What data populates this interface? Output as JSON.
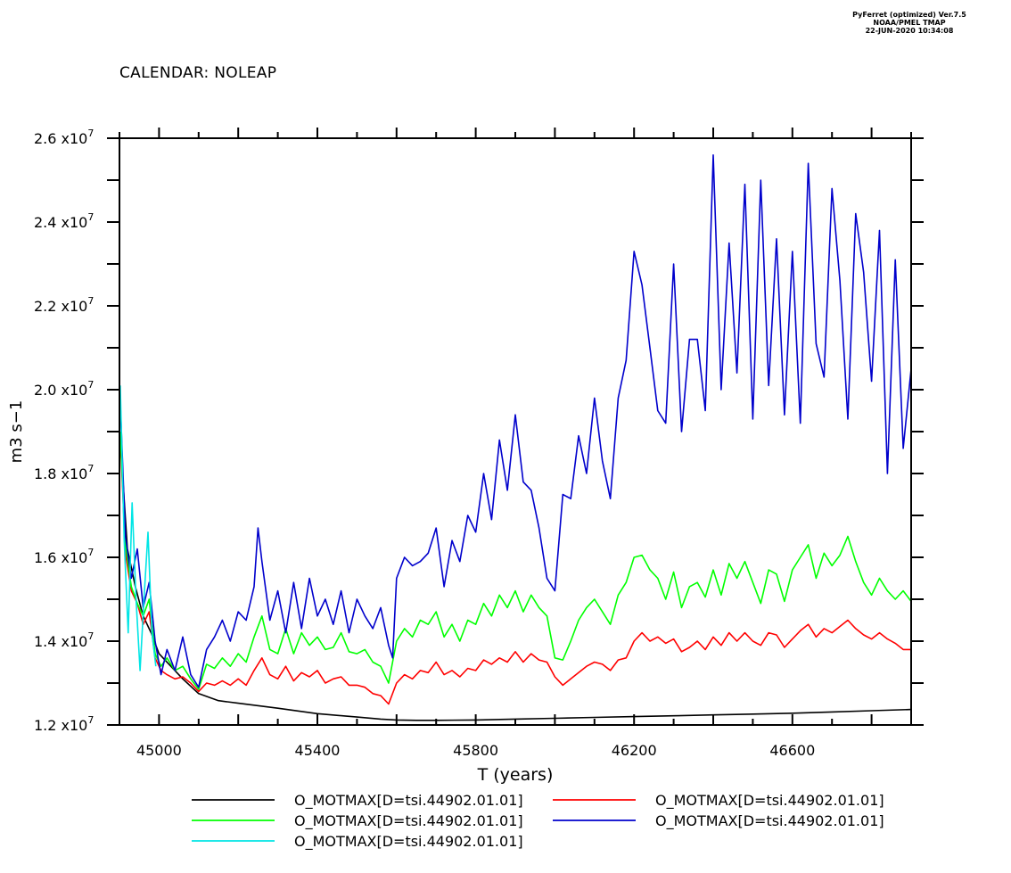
{
  "header": {
    "line1": "PyFerret (optimized) Ver.7.5",
    "line2": "NOAA/PMEL TMAP",
    "line3": "22-JUN-2020 10:34:08"
  },
  "calendar_label": "CALENDAR: NOLEAP",
  "chart_data": {
    "type": "line",
    "title": "",
    "xlabel": "T (years)",
    "ylabel": "m3 s−1",
    "xlim": [
      44900,
      46900
    ],
    "ylim": [
      12000000,
      26000000
    ],
    "x_ticks": [
      45000,
      45400,
      45800,
      46200,
      46600
    ],
    "y_tick_labels": [
      {
        "value": 12000000,
        "mant": "1.2",
        "exp": "7"
      },
      {
        "value": 14000000,
        "mant": "1.4",
        "exp": "7"
      },
      {
        "value": 16000000,
        "mant": "1.6",
        "exp": "7"
      },
      {
        "value": 18000000,
        "mant": "1.8",
        "exp": "7"
      },
      {
        "value": 20000000,
        "mant": "2.0",
        "exp": "7"
      },
      {
        "value": 22000000,
        "mant": "2.2",
        "exp": "7"
      },
      {
        "value": 24000000,
        "mant": "2.4",
        "exp": "7"
      },
      {
        "value": 26000000,
        "mant": "2.6",
        "exp": "7"
      }
    ],
    "grid": false,
    "legend_position": "bottom",
    "series": [
      {
        "name": "O_MOTMAX[D=tsi.44902.01.01]",
        "color": "#000000",
        "x": [
          44902,
          44920,
          44940,
          44960,
          44980,
          45000,
          45030,
          45060,
          45100,
          45150,
          45200,
          45300,
          45400,
          45500,
          45560,
          45600,
          45650,
          45700,
          45800,
          45900,
          46000,
          46100,
          46200,
          46300,
          46400,
          46500,
          46600,
          46700,
          46800,
          46900
        ],
        "y": [
          18800000,
          16200000,
          15300000,
          14600000,
          14200000,
          13700000,
          13400000,
          13100000,
          12750000,
          12580000,
          12520000,
          12400000,
          12270000,
          12190000,
          12140000,
          12120000,
          12110000,
          12110000,
          12120000,
          12140000,
          12160000,
          12180000,
          12200000,
          12220000,
          12240000,
          12260000,
          12280000,
          12310000,
          12340000,
          12370000
        ]
      },
      {
        "name": "O_MOTMAX[D=tsi.44902.01.01]",
        "color": "#ff0000",
        "x": [
          44902,
          44915,
          44930,
          44945,
          44960,
          44975,
          44990,
          45005,
          45020,
          45040,
          45060,
          45080,
          45100,
          45120,
          45140,
          45160,
          45180,
          45200,
          45220,
          45240,
          45260,
          45280,
          45300,
          45320,
          45340,
          45360,
          45380,
          45400,
          45420,
          45440,
          45460,
          45480,
          45500,
          45520,
          45540,
          45560,
          45580,
          45600,
          45620,
          45640,
          45660,
          45680,
          45700,
          45720,
          45740,
          45760,
          45780,
          45800,
          45820,
          45840,
          45860,
          45880,
          45900,
          45920,
          45940,
          45960,
          45980,
          46000,
          46020,
          46040,
          46060,
          46080,
          46100,
          46120,
          46140,
          46160,
          46180,
          46200,
          46220,
          46240,
          46260,
          46280,
          46300,
          46320,
          46340,
          46360,
          46380,
          46400,
          46420,
          46440,
          46460,
          46480,
          46500,
          46520,
          46540,
          46560,
          46580,
          46600,
          46620,
          46640,
          46660,
          46680,
          46700,
          46720,
          46740,
          46760,
          46780,
          46800,
          46820,
          46840,
          46860,
          46880,
          46900
        ],
        "y": [
          18900000,
          16100000,
          15200000,
          14900000,
          14400000,
          14700000,
          13600000,
          13300000,
          13200000,
          13100000,
          13150000,
          13000000,
          12800000,
          13000000,
          12950000,
          13050000,
          12950000,
          13100000,
          12950000,
          13300000,
          13600000,
          13200000,
          13100000,
          13400000,
          13050000,
          13250000,
          13150000,
          13300000,
          13000000,
          13100000,
          13150000,
          12950000,
          12950000,
          12900000,
          12750000,
          12700000,
          12500000,
          13000000,
          13200000,
          13100000,
          13300000,
          13250000,
          13500000,
          13200000,
          13300000,
          13150000,
          13350000,
          13300000,
          13550000,
          13450000,
          13600000,
          13500000,
          13750000,
          13500000,
          13700000,
          13550000,
          13500000,
          13150000,
          12950000,
          13100000,
          13250000,
          13400000,
          13500000,
          13450000,
          13300000,
          13550000,
          13600000,
          14000000,
          14200000,
          14000000,
          14100000,
          13950000,
          14050000,
          13750000,
          13850000,
          14000000,
          13800000,
          14100000,
          13900000,
          14200000,
          14000000,
          14200000,
          14000000,
          13900000,
          14200000,
          14150000,
          13850000,
          14050000,
          14250000,
          14400000,
          14100000,
          14300000,
          14200000,
          14350000,
          14500000,
          14300000,
          14150000,
          14050000,
          14200000,
          14050000,
          13950000,
          13800000,
          13800000
        ]
      },
      {
        "name": "O_MOTMAX[D=tsi.44902.01.01]",
        "color": "#00ff00",
        "x": [
          44902,
          44915,
          44930,
          44945,
          44960,
          44975,
          44990,
          45005,
          45020,
          45040,
          45060,
          45080,
          45100,
          45120,
          45140,
          45160,
          45180,
          45200,
          45220,
          45240,
          45260,
          45280,
          45300,
          45320,
          45340,
          45360,
          45380,
          45400,
          45420,
          45440,
          45460,
          45480,
          45500,
          45520,
          45540,
          45560,
          45580,
          45600,
          45620,
          45640,
          45660,
          45680,
          45700,
          45720,
          45740,
          45760,
          45780,
          45800,
          45820,
          45840,
          45860,
          45880,
          45900,
          45920,
          45940,
          45960,
          45980,
          46000,
          46020,
          46040,
          46060,
          46080,
          46100,
          46120,
          46140,
          46160,
          46180,
          46200,
          46220,
          46240,
          46260,
          46280,
          46300,
          46320,
          46340,
          46360,
          46380,
          46400,
          46420,
          46440,
          46460,
          46480,
          46500,
          46520,
          46540,
          46560,
          46580,
          46600,
          46620,
          46640,
          46660,
          46680,
          46700,
          46720,
          46740,
          46760,
          46780,
          46800,
          46820,
          46840,
          46860,
          46880,
          46900
        ],
        "y": [
          19000000,
          16300000,
          15300000,
          14900000,
          14600000,
          15000000,
          13700000,
          13400000,
          13600000,
          13300000,
          13400000,
          13100000,
          12850000,
          13450000,
          13350000,
          13600000,
          13400000,
          13700000,
          13500000,
          14100000,
          14600000,
          13800000,
          13700000,
          14300000,
          13700000,
          14200000,
          13900000,
          14100000,
          13800000,
          13850000,
          14200000,
          13750000,
          13700000,
          13800000,
          13500000,
          13400000,
          13000000,
          14000000,
          14300000,
          14100000,
          14500000,
          14400000,
          14700000,
          14100000,
          14400000,
          14000000,
          14500000,
          14400000,
          14900000,
          14600000,
          15100000,
          14800000,
          15200000,
          14700000,
          15100000,
          14800000,
          14600000,
          13600000,
          13550000,
          14000000,
          14500000,
          14800000,
          15000000,
          14700000,
          14400000,
          15100000,
          15400000,
          16000000,
          16050000,
          15700000,
          15500000,
          15000000,
          15650000,
          14800000,
          15300000,
          15400000,
          15050000,
          15700000,
          15100000,
          15850000,
          15500000,
          15900000,
          15400000,
          14900000,
          15700000,
          15600000,
          14950000,
          15700000,
          16000000,
          16300000,
          15500000,
          16100000,
          15800000,
          16050000,
          16500000,
          15900000,
          15400000,
          15100000,
          15500000,
          15200000,
          15000000,
          15200000,
          14950000
        ]
      },
      {
        "name": "O_MOTMAX[D=tsi.44902.01.01]",
        "color": "#0000cc",
        "x": [
          44902,
          44915,
          44930,
          44945,
          44960,
          44975,
          44990,
          45005,
          45020,
          45040,
          45060,
          45080,
          45100,
          45120,
          45140,
          45160,
          45180,
          45200,
          45220,
          45240,
          45250,
          45260,
          45280,
          45300,
          45320,
          45340,
          45360,
          45380,
          45400,
          45420,
          45440,
          45460,
          45480,
          45500,
          45520,
          45540,
          45560,
          45580,
          45590,
          45600,
          45620,
          45640,
          45660,
          45680,
          45700,
          45720,
          45740,
          45760,
          45780,
          45800,
          45820,
          45840,
          45860,
          45880,
          45900,
          45920,
          45940,
          45960,
          45980,
          46000,
          46020,
          46040,
          46060,
          46080,
          46100,
          46120,
          46140,
          46160,
          46180,
          46200,
          46220,
          46240,
          46260,
          46280,
          46300,
          46320,
          46340,
          46360,
          46380,
          46400,
          46420,
          46440,
          46460,
          46480,
          46500,
          46520,
          46540,
          46560,
          46580,
          46600,
          46620,
          46640,
          46660,
          46680,
          46700,
          46720,
          46740,
          46760,
          46780,
          46800,
          46820,
          46840,
          46860,
          46880,
          46900
        ],
        "y": [
          19700000,
          16500000,
          15500000,
          16200000,
          14800000,
          15400000,
          14000000,
          13200000,
          13800000,
          13300000,
          14100000,
          13200000,
          12900000,
          13800000,
          14100000,
          14500000,
          14000000,
          14700000,
          14500000,
          15300000,
          16700000,
          15900000,
          14500000,
          15200000,
          14200000,
          15400000,
          14300000,
          15500000,
          14600000,
          15000000,
          14400000,
          15200000,
          14200000,
          15000000,
          14600000,
          14300000,
          14800000,
          13900000,
          13600000,
          15500000,
          16000000,
          15800000,
          15900000,
          16100000,
          16700000,
          15300000,
          16400000,
          15900000,
          17000000,
          16600000,
          18000000,
          16900000,
          18800000,
          17600000,
          19400000,
          17800000,
          17600000,
          16700000,
          15500000,
          15200000,
          17500000,
          17400000,
          18900000,
          18000000,
          19800000,
          18300000,
          17400000,
          19800000,
          20700000,
          23300000,
          22500000,
          21000000,
          19500000,
          19200000,
          23000000,
          19000000,
          21200000,
          21200000,
          19500000,
          25600000,
          20000000,
          23500000,
          20400000,
          24900000,
          19300000,
          25000000,
          20100000,
          23600000,
          19400000,
          23300000,
          19200000,
          25400000,
          21100000,
          20300000,
          24800000,
          22600000,
          19300000,
          24200000,
          22800000,
          20200000,
          23800000,
          18000000,
          23100000,
          18600000,
          20500000
        ]
      },
      {
        "name": "O_MOTMAX[D=tsi.44902.01.01]",
        "color": "#00e5e5",
        "x": [
          44902,
          44912,
          44922,
          44932,
          44942,
          44952,
          44962,
          44972,
          44982,
          44992
        ],
        "y": [
          20100000,
          16400000,
          14200000,
          17300000,
          15000000,
          13300000,
          15000000,
          16600000,
          14200000,
          13400000
        ]
      }
    ]
  }
}
